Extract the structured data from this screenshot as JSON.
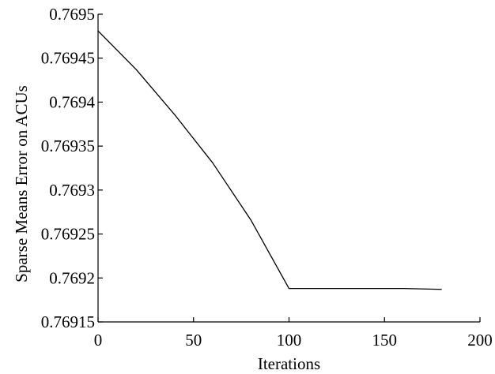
{
  "chart_data": {
    "type": "line",
    "title": "",
    "xlabel": "Iterations",
    "ylabel": "Sparse Means Error on ACUs",
    "xlim": [
      0,
      200
    ],
    "ylim": [
      0.76915,
      0.7695
    ],
    "x_ticks": [
      0,
      50,
      100,
      150,
      200
    ],
    "x_tick_labels": [
      "0",
      "50",
      "100",
      "150",
      "200"
    ],
    "y_ticks": [
      0.76915,
      0.7692,
      0.76925,
      0.7693,
      0.76935,
      0.7694,
      0.76945,
      0.7695
    ],
    "y_tick_labels": [
      "0.76915",
      "0.7692",
      "0.76925",
      "0.7693",
      "0.76935",
      "0.7694",
      "0.76945",
      "0.7695"
    ],
    "grid": false,
    "legend": "none",
    "line_color": "#000000",
    "series": [
      {
        "x": [
          0,
          20,
          40,
          60,
          80,
          100,
          120,
          140,
          160,
          180
        ],
        "values": [
          0.769481,
          0.769437,
          0.769386,
          0.769331,
          0.769266,
          0.769188,
          0.769188,
          0.769188,
          0.769188,
          0.769187
        ]
      }
    ]
  }
}
